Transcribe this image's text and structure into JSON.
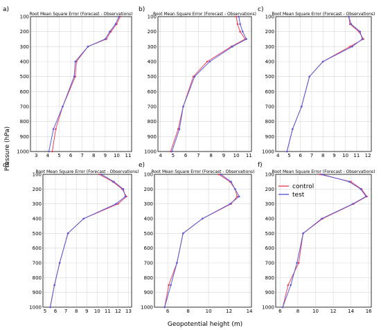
{
  "figure": {
    "ylabel": "Pressure (hPa)",
    "xlabel": "Geopotential height (m)"
  },
  "colors": {
    "control": "#e8445a",
    "test": "#5a58d8",
    "grid": "#d8d8d8"
  },
  "chart_data": [
    {
      "type": "line",
      "label": "a)",
      "title": "Root Mean Square Error (Forecast - Observations)",
      "xlim": [
        2.5,
        11.3
      ],
      "xticks": [
        3,
        4,
        5,
        6,
        7,
        8,
        9,
        10,
        11
      ],
      "ylim": [
        1000,
        100
      ],
      "yticks": [
        100,
        200,
        300,
        400,
        500,
        600,
        700,
        800,
        900,
        1000
      ],
      "series": [
        {
          "name": "control",
          "y": [
            100,
            150,
            200,
            250,
            300,
            400,
            500,
            700,
            850,
            1000
          ],
          "x": [
            10.3,
            10.0,
            9.5,
            9.1,
            7.5,
            6.5,
            6.4,
            5.3,
            4.7,
            4.4
          ]
        },
        {
          "name": "test",
          "y": [
            100,
            150,
            200,
            250,
            300,
            400,
            500,
            700,
            850,
            1000
          ],
          "x": [
            10.2,
            9.9,
            9.4,
            9.0,
            7.5,
            6.4,
            6.3,
            5.3,
            4.5,
            4.1
          ]
        }
      ]
    },
    {
      "type": "line",
      "label": "b)",
      "title": "Root Mean Square Error (Forecast - Observations)",
      "xlim": [
        3.8,
        11.2
      ],
      "xticks": [
        4,
        5,
        6,
        7,
        8,
        9,
        10,
        11
      ],
      "ylim": [
        1000,
        100
      ],
      "yticks": [
        100,
        200,
        300,
        400,
        500,
        600,
        700,
        800,
        900,
        1000
      ],
      "series": [
        {
          "name": "control",
          "y": [
            100,
            150,
            200,
            250,
            300,
            400,
            500,
            700,
            850,
            1000
          ],
          "x": [
            10.0,
            10.1,
            10.3,
            10.7,
            9.6,
            7.7,
            6.6,
            5.8,
            5.4,
            4.8
          ]
        },
        {
          "name": "test",
          "y": [
            100,
            150,
            200,
            250,
            300,
            400,
            500,
            700,
            850,
            1000
          ],
          "x": [
            10.2,
            10.3,
            10.5,
            10.8,
            9.7,
            7.9,
            6.7,
            5.8,
            5.5,
            4.9
          ]
        }
      ]
    },
    {
      "type": "line",
      "label": "c)",
      "title": "Root Mean Square Error (Forecast - Observations)",
      "xlim": [
        3.8,
        12.3
      ],
      "xticks": [
        4,
        5,
        6,
        7,
        8,
        9,
        10,
        11,
        12
      ],
      "ylim": [
        1000,
        100
      ],
      "yticks": [
        100,
        200,
        300,
        400,
        500,
        600,
        700,
        800,
        900,
        1000
      ],
      "series": [
        {
          "name": "control",
          "y": [
            100,
            150,
            200,
            250,
            300,
            400,
            500,
            700,
            850,
            1000
          ],
          "x": [
            10.3,
            10.4,
            11.2,
            11.6,
            10.4,
            8.0,
            6.8,
            6.1,
            5.3,
            4.8
          ]
        },
        {
          "name": "test",
          "y": [
            100,
            150,
            200,
            250,
            300,
            400,
            500,
            700,
            850,
            1000
          ],
          "x": [
            10.3,
            10.5,
            11.3,
            11.5,
            10.6,
            8.0,
            6.8,
            6.1,
            5.3,
            4.8
          ]
        }
      ]
    },
    {
      "type": "line",
      "label": "d)",
      "title": "Root Mean Square Error (Forecast - Observations)",
      "xlim": [
        4.8,
        13.3
      ],
      "xticks": [
        5,
        6,
        7,
        8,
        9,
        10,
        11,
        12,
        13
      ],
      "ylim": [
        1000,
        100
      ],
      "yticks": [
        100,
        200,
        300,
        400,
        500,
        600,
        700,
        800,
        900,
        1000
      ],
      "series": [
        {
          "name": "control",
          "y": [
            100,
            150,
            200,
            250,
            300,
            400,
            500,
            700,
            850,
            1000
          ],
          "x": [
            10.2,
            11.5,
            12.4,
            12.8,
            12.0,
            8.7,
            7.2,
            6.4,
            5.9,
            5.5
          ]
        },
        {
          "name": "test",
          "y": [
            100,
            150,
            200,
            250,
            300,
            400,
            500,
            700,
            850,
            1000
          ],
          "x": [
            10.4,
            11.6,
            12.5,
            12.7,
            11.8,
            8.7,
            7.2,
            6.4,
            5.9,
            5.5
          ]
        }
      ]
    },
    {
      "type": "line",
      "label": "e)",
      "title": "Root Mean Square Error (Forecast - Observations)",
      "xlim": [
        4.7,
        14.2
      ],
      "xticks": [
        6,
        8,
        10,
        12,
        14
      ],
      "ylim": [
        1000,
        100
      ],
      "yticks": [
        100,
        200,
        300,
        400,
        500,
        600,
        700,
        800,
        900,
        1000
      ],
      "series": [
        {
          "name": "control",
          "y": [
            100,
            150,
            200,
            250,
            300,
            400,
            500,
            700,
            850,
            1000
          ],
          "x": [
            11.0,
            12.1,
            12.6,
            12.8,
            12.2,
            9.4,
            7.5,
            6.9,
            6.1,
            5.7
          ]
        },
        {
          "name": "test",
          "y": [
            100,
            150,
            200,
            250,
            300,
            400,
            500,
            700,
            850,
            1000
          ],
          "x": [
            11.2,
            12.2,
            12.6,
            13.0,
            12.1,
            9.4,
            7.5,
            6.9,
            6.3,
            5.7
          ]
        }
      ]
    },
    {
      "type": "line",
      "label": "f)",
      "title": "Root Mean Square Error (Forecast - Observations)",
      "xlim": [
        5.5,
        16.3
      ],
      "xticks": [
        6,
        8,
        10,
        12,
        14,
        16
      ],
      "ylim": [
        1000,
        100
      ],
      "yticks": [
        100,
        200,
        300,
        400,
        500,
        600,
        700,
        800,
        900,
        1000
      ],
      "legend": {
        "position": "top-left",
        "entries": [
          "control",
          "test"
        ]
      },
      "series": [
        {
          "name": "control",
          "y": [
            100,
            150,
            200,
            250,
            300,
            400,
            500,
            700,
            850,
            1000
          ],
          "x": [
            10.5,
            14.0,
            15.2,
            15.8,
            14.3,
            10.8,
            8.6,
            8.1,
            6.9,
            6.3
          ]
        },
        {
          "name": "test",
          "y": [
            100,
            150,
            200,
            250,
            300,
            400,
            500,
            700,
            850,
            1000
          ],
          "x": [
            10.7,
            13.8,
            15.1,
            15.7,
            14.2,
            10.7,
            8.6,
            7.9,
            7.2,
            6.3
          ]
        }
      ]
    }
  ]
}
